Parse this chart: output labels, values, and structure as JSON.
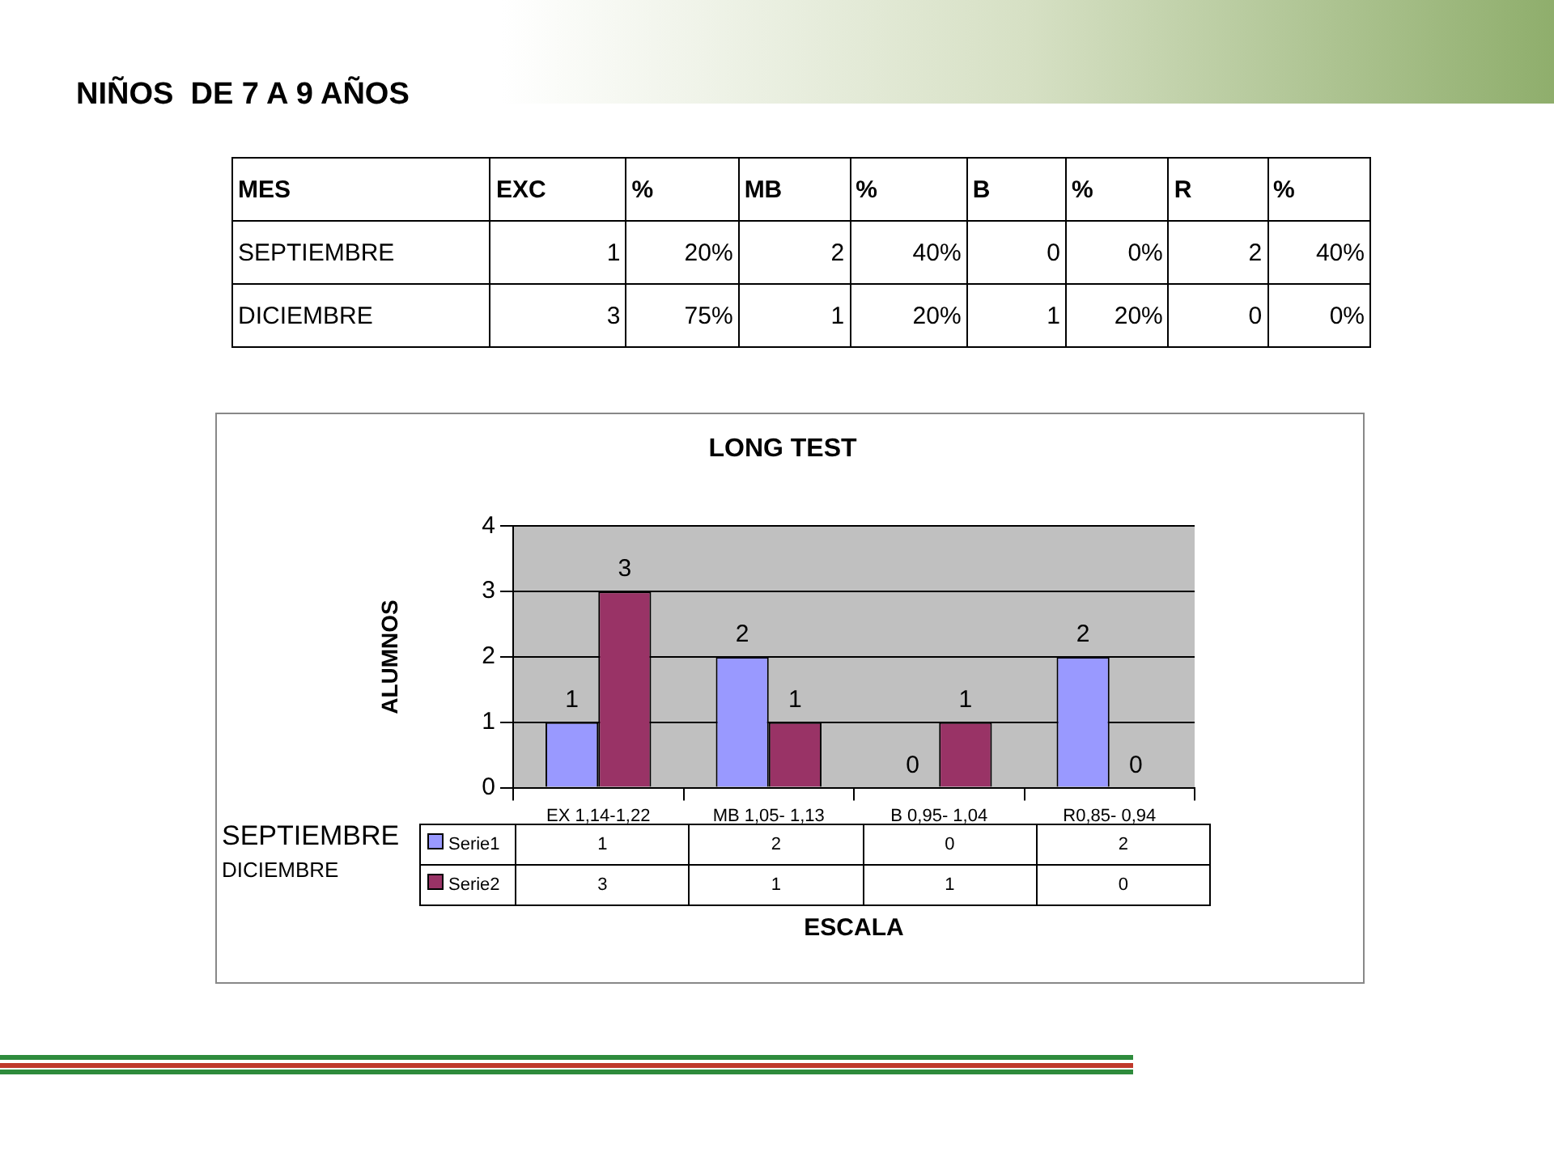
{
  "chart_data": [
    {
      "type": "other",
      "title": "NIÑOS  DE 7 A 9 AÑOS",
      "annotations": [
        "MES",
        "EXC",
        "%",
        "MB",
        "%",
        "B",
        "%",
        "R",
        "%",
        "SEPTIEMBRE",
        "1",
        "20%",
        "2",
        "40%",
        "0",
        "0%",
        "2",
        "40%",
        "DICIEMBRE",
        "3",
        "75%",
        "1",
        "20%",
        "1",
        "20%",
        "0",
        "0%"
      ]
    },
    {
      "type": "bar",
      "title": "LONG TEST",
      "xlabel": "ESCALA",
      "ylabel": "ALUMNOS",
      "categories": [
        "EX 1,14-1,22",
        "MB 1,05- 1,13",
        "B 0,95- 1,04",
        "R0,85- 0,94"
      ],
      "series": [
        {
          "name": "Serie1",
          "color": "#9999ff",
          "values": [
            1,
            2,
            0,
            2
          ]
        },
        {
          "name": "Serie2",
          "color": "#993366",
          "values": [
            3,
            1,
            1,
            0
          ]
        }
      ],
      "ylim": [
        0,
        4
      ],
      "yticks": [
        0,
        1,
        2,
        3,
        4
      ],
      "grid": "y",
      "legend": "bottom",
      "data_labels": true,
      "annotations": [
        "SEPTIEMBRE",
        "DICIEMBRE"
      ]
    }
  ]
}
